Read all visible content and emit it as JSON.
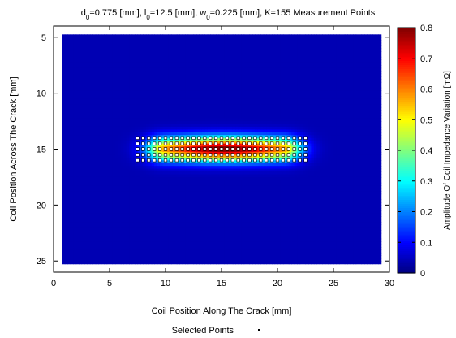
{
  "chart_data": {
    "type": "heatmap",
    "title_parts": [
      {
        "text": "d",
        "sub": false
      },
      {
        "text": "0",
        "sub": true
      },
      {
        "text": "=0.775 [mm], l",
        "sub": false
      },
      {
        "text": "0",
        "sub": true
      },
      {
        "text": "=12.5 [mm], w",
        "sub": false
      },
      {
        "text": "0",
        "sub": true
      },
      {
        "text": "=0.225 [mm], K=155 Measurement Points",
        "sub": false
      }
    ],
    "xlabel": "Coil Position Along The Crack [mm]",
    "ylabel": "Coil Position Across The Crack [mm]",
    "colorbar_label": "Amplitude Of Coil Impedance Variation [mΩ]",
    "xlim": [
      0,
      30
    ],
    "ylim": [
      26,
      4
    ],
    "xticks": [
      0,
      5,
      10,
      15,
      20,
      25,
      30
    ],
    "yticks": [
      5,
      10,
      15,
      20,
      25
    ],
    "colorbar_lim": [
      0,
      0.8
    ],
    "colorbar_ticks": [
      0,
      0.1,
      0.2,
      0.3,
      0.4,
      0.5,
      0.6,
      0.7,
      0.8
    ],
    "data_extent": {
      "x": [
        0.75,
        29.25
      ],
      "y": [
        4.75,
        25.25
      ]
    },
    "crack_center": {
      "x": 15.25,
      "y": 15
    },
    "peak_value": 0.8,
    "background_value": 0.04,
    "grid": false,
    "colormap": "jet",
    "measurement_points": {
      "x_start": 7.5,
      "x_step": 0.5,
      "x_count": 31,
      "y_values": [
        14.0,
        14.5,
        15.0,
        15.5,
        16.0
      ],
      "count": 155
    },
    "legend": {
      "label": "Selected Points",
      "placement": "bottom"
    }
  }
}
